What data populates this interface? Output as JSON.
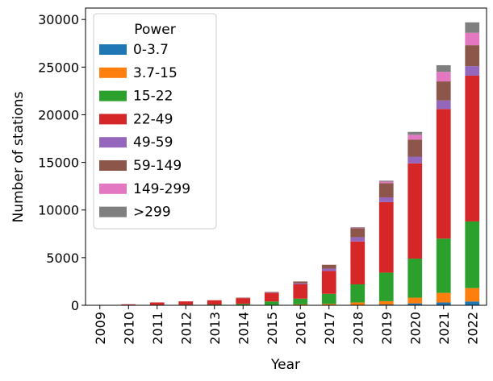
{
  "chart_data": {
    "type": "bar",
    "stacked": true,
    "xlabel": "Year",
    "ylabel": "Number of stations",
    "ylim": [
      0,
      31200
    ],
    "yticks": [
      0,
      5000,
      10000,
      15000,
      20000,
      25000,
      30000
    ],
    "categories": [
      "2009",
      "2010",
      "2011",
      "2012",
      "2013",
      "2014",
      "2015",
      "2016",
      "2017",
      "2018",
      "2019",
      "2020",
      "2021",
      "2022"
    ],
    "legend": {
      "title": "Power",
      "placement": "top-left"
    },
    "series": [
      {
        "name": "0-3.7",
        "color": "#1f77b4",
        "values": [
          0,
          0,
          0,
          0,
          0,
          0,
          0,
          0,
          0,
          50,
          80,
          200,
          300,
          400
        ]
      },
      {
        "name": "3.7-15",
        "color": "#ff7f0e",
        "values": [
          0,
          0,
          0,
          0,
          0,
          0,
          50,
          100,
          150,
          250,
          350,
          600,
          1000,
          1400
        ]
      },
      {
        "name": "15-22",
        "color": "#2ca02c",
        "values": [
          0,
          0,
          50,
          60,
          80,
          150,
          350,
          600,
          1050,
          1900,
          3000,
          4100,
          5700,
          7000
        ]
      },
      {
        "name": "22-49",
        "color": "#d62728",
        "values": [
          30,
          100,
          250,
          350,
          450,
          600,
          900,
          1500,
          2400,
          4500,
          7400,
          10000,
          13600,
          15300
        ]
      },
      {
        "name": "49-59",
        "color": "#9467bd",
        "values": [
          0,
          0,
          0,
          0,
          0,
          0,
          50,
          100,
          250,
          450,
          500,
          700,
          900,
          1000
        ]
      },
      {
        "name": "59-149",
        "color": "#8c564b",
        "values": [
          0,
          0,
          0,
          0,
          0,
          50,
          50,
          200,
          400,
          950,
          1500,
          1800,
          2000,
          2200
        ]
      },
      {
        "name": "149-299",
        "color": "#e377c2",
        "values": [
          0,
          0,
          0,
          0,
          0,
          0,
          0,
          0,
          0,
          50,
          150,
          500,
          1000,
          1300
        ]
      },
      {
        "name": ">299",
        "color": "#7f7f7f",
        "values": [
          0,
          0,
          0,
          0,
          0,
          0,
          0,
          0,
          0,
          50,
          100,
          300,
          700,
          1100
        ]
      }
    ]
  }
}
